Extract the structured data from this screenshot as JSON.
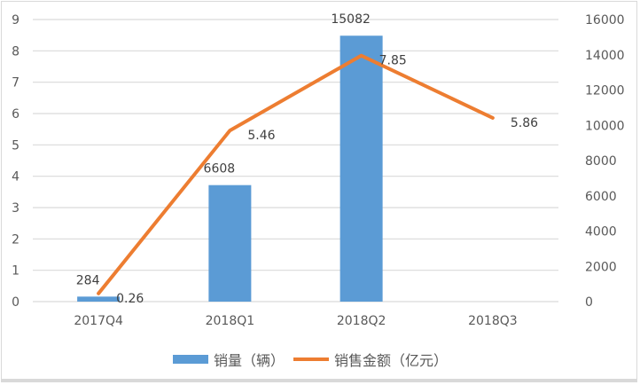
{
  "chart_data": {
    "type": "bar+line",
    "title": "",
    "categories": [
      "2017Q4",
      "2018Q1",
      "2018Q2",
      "2018Q3"
    ],
    "series": [
      {
        "name": "销量（辆）",
        "type": "bar",
        "axis": "right",
        "color": "#5b9bd5",
        "values": [
          284,
          6608,
          15082,
          null
        ],
        "labels": [
          "284",
          "6608",
          "15082",
          ""
        ]
      },
      {
        "name": "销售金额（亿元）",
        "type": "line",
        "axis": "left",
        "color": "#ed7d31",
        "values": [
          0.26,
          5.46,
          7.85,
          5.86
        ],
        "labels": [
          "0.26",
          "5.46",
          "7.85",
          "5.86"
        ]
      }
    ],
    "left_axis": {
      "min": 0,
      "max": 9,
      "ticks": [
        "0",
        "1",
        "2",
        "3",
        "4",
        "5",
        "6",
        "7",
        "8",
        "9"
      ]
    },
    "right_axis": {
      "min": 0,
      "max": 16000,
      "ticks": [
        "0",
        "2000",
        "4000",
        "6000",
        "8000",
        "10000",
        "12000",
        "14000",
        "16000"
      ]
    },
    "grid": true,
    "legend_position": "bottom"
  },
  "legend": {
    "bar_label": "销量（辆）",
    "line_label": "销售金额（亿元）"
  }
}
